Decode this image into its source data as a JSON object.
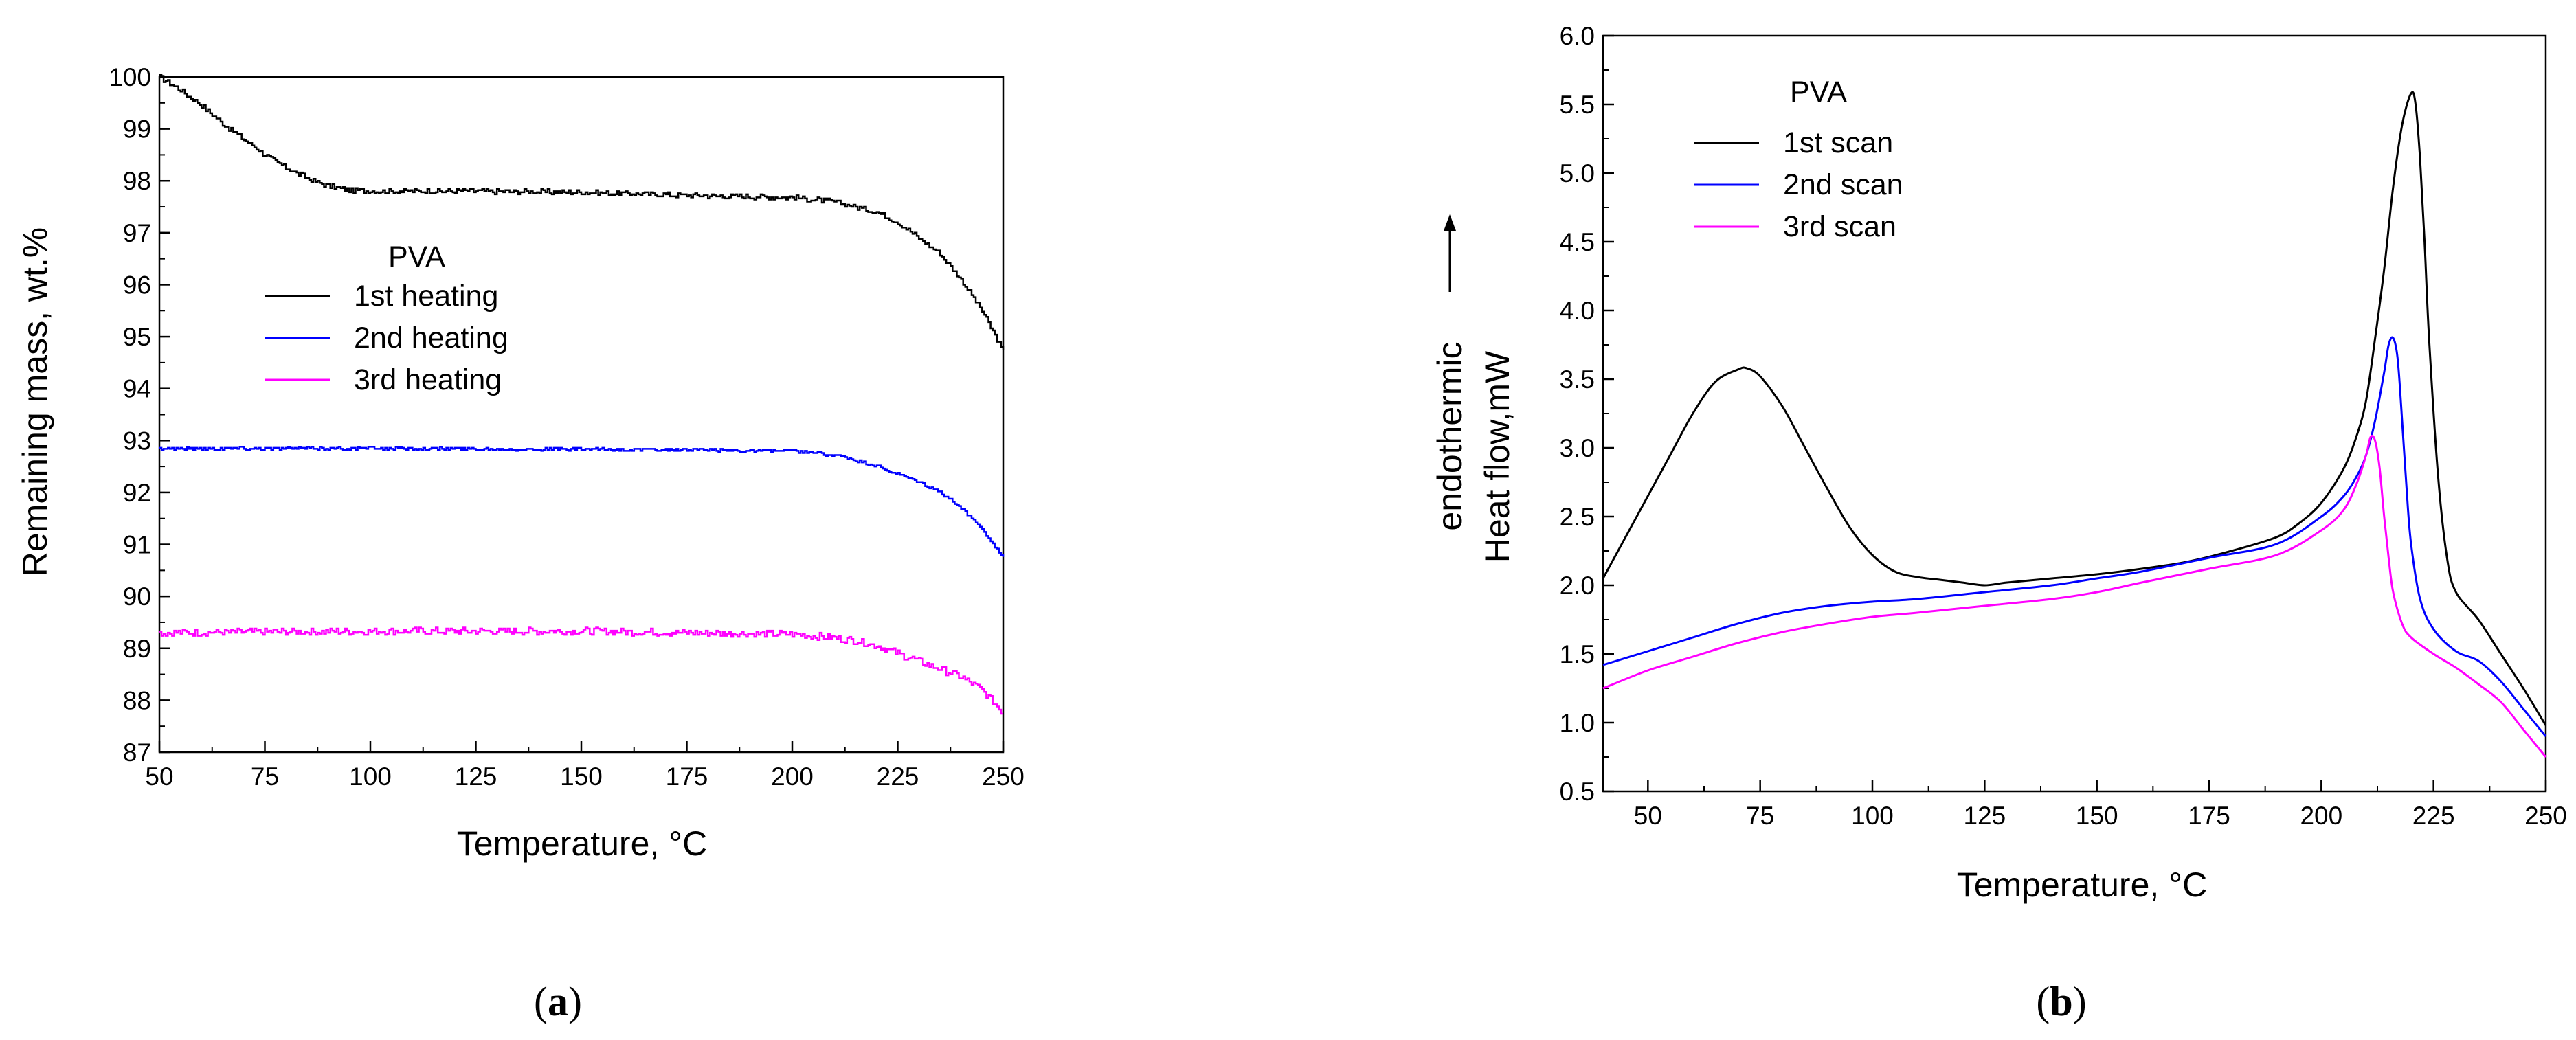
{
  "chart_data": [
    {
      "type": "line",
      "panel": "a",
      "caption": "a",
      "title": "PVA",
      "xlabel": "Temperature, °C",
      "ylabel": "Remaining mass, wt.%",
      "xlim": [
        50,
        250
      ],
      "ylim": [
        87,
        100
      ],
      "xticks": [
        50,
        75,
        100,
        125,
        150,
        175,
        200,
        225,
        250
      ],
      "yticks": [
        87,
        88,
        89,
        90,
        91,
        92,
        93,
        94,
        95,
        96,
        97,
        98,
        99,
        100
      ],
      "legend_position": "center",
      "series": [
        {
          "name": "1st heating",
          "color": "#000000",
          "noise": 0.05,
          "x": [
            50,
            55,
            60,
            65,
            70,
            75,
            80,
            85,
            90,
            95,
            100,
            110,
            125,
            150,
            175,
            200,
            210,
            215,
            220,
            225,
            230,
            235,
            240,
            245,
            250
          ],
          "y": [
            100.0,
            99.75,
            99.45,
            99.1,
            98.8,
            98.5,
            98.25,
            98.05,
            97.9,
            97.82,
            97.8,
            97.8,
            97.8,
            97.78,
            97.72,
            97.68,
            97.6,
            97.5,
            97.4,
            97.2,
            96.9,
            96.6,
            96.1,
            95.5,
            94.7
          ]
        },
        {
          "name": "2nd heating",
          "color": "#0000ff",
          "noise": 0.03,
          "x": [
            50,
            100,
            150,
            175,
            200,
            210,
            215,
            220,
            225,
            230,
            235,
            240,
            245,
            250
          ],
          "y": [
            92.85,
            92.85,
            92.83,
            92.82,
            92.8,
            92.72,
            92.62,
            92.5,
            92.35,
            92.2,
            92.0,
            91.7,
            91.3,
            90.75
          ]
        },
        {
          "name": "3rd heating",
          "color": "#ff00ff",
          "noise": 0.07,
          "x": [
            50,
            100,
            150,
            175,
            200,
            210,
            215,
            220,
            225,
            230,
            235,
            240,
            245,
            250
          ],
          "y": [
            89.3,
            89.33,
            89.33,
            89.3,
            89.27,
            89.2,
            89.15,
            89.05,
            88.9,
            88.75,
            88.6,
            88.45,
            88.2,
            87.75
          ]
        }
      ]
    },
    {
      "type": "line",
      "panel": "b",
      "caption": "b",
      "title": "PVA",
      "xlabel": "Temperature, °C",
      "ylabel": "Heat flow,mW",
      "ylabel2": "endothermic",
      "xlim": [
        40,
        250
      ],
      "ylim": [
        0.5,
        6.0
      ],
      "xticks": [
        50,
        75,
        100,
        125,
        150,
        175,
        200,
        225,
        250
      ],
      "yticks": [
        0.5,
        1.0,
        1.5,
        2.0,
        2.5,
        3.0,
        3.5,
        4.0,
        4.5,
        5.0,
        5.5,
        6.0
      ],
      "legend_position": "top-left",
      "series": [
        {
          "name": "1st scan",
          "color": "#000000",
          "x": [
            40,
            45,
            50,
            55,
            60,
            65,
            70,
            72,
            75,
            80,
            85,
            90,
            95,
            100,
            105,
            110,
            115,
            120,
            125,
            130,
            140,
            150,
            160,
            170,
            180,
            190,
            195,
            200,
            205,
            208,
            210,
            212,
            214,
            216,
            218,
            220,
            221,
            222,
            223,
            224,
            226,
            228,
            230,
            235,
            240,
            245,
            250
          ],
          "y": [
            2.05,
            2.35,
            2.65,
            2.95,
            3.25,
            3.48,
            3.57,
            3.58,
            3.52,
            3.3,
            3.0,
            2.7,
            2.42,
            2.22,
            2.1,
            2.06,
            2.04,
            2.02,
            2.0,
            2.02,
            2.05,
            2.08,
            2.12,
            2.17,
            2.25,
            2.35,
            2.45,
            2.6,
            2.85,
            3.1,
            3.35,
            3.8,
            4.3,
            4.9,
            5.35,
            5.58,
            5.5,
            5.1,
            4.5,
            3.8,
            2.8,
            2.2,
            1.95,
            1.75,
            1.5,
            1.25,
            0.98
          ]
        },
        {
          "name": "2nd scan",
          "color": "#0000ff",
          "x": [
            40,
            50,
            60,
            70,
            80,
            90,
            100,
            110,
            125,
            140,
            150,
            160,
            175,
            190,
            200,
            205,
            208,
            210,
            212,
            214,
            215,
            216,
            217,
            218,
            219,
            220,
            222,
            225,
            230,
            235,
            240,
            245,
            250
          ],
          "y": [
            1.42,
            1.52,
            1.62,
            1.72,
            1.8,
            1.85,
            1.88,
            1.9,
            1.95,
            2.0,
            2.05,
            2.1,
            2.2,
            2.3,
            2.5,
            2.65,
            2.8,
            2.95,
            3.2,
            3.55,
            3.75,
            3.8,
            3.65,
            3.2,
            2.7,
            2.3,
            1.9,
            1.68,
            1.52,
            1.45,
            1.3,
            1.1,
            0.9
          ]
        },
        {
          "name": "3rd scan",
          "color": "#ff00ff",
          "x": [
            40,
            50,
            60,
            70,
            80,
            90,
            100,
            110,
            125,
            140,
            150,
            160,
            175,
            190,
            200,
            205,
            208,
            210,
            211,
            212,
            213,
            214,
            215,
            216,
            218,
            220,
            225,
            230,
            235,
            240,
            245,
            250
          ],
          "y": [
            1.25,
            1.38,
            1.48,
            1.58,
            1.66,
            1.72,
            1.77,
            1.8,
            1.85,
            1.9,
            1.95,
            2.02,
            2.12,
            2.22,
            2.4,
            2.55,
            2.75,
            2.95,
            3.08,
            3.05,
            2.85,
            2.5,
            2.2,
            1.95,
            1.72,
            1.62,
            1.5,
            1.4,
            1.28,
            1.15,
            0.95,
            0.75
          ]
        }
      ]
    }
  ]
}
